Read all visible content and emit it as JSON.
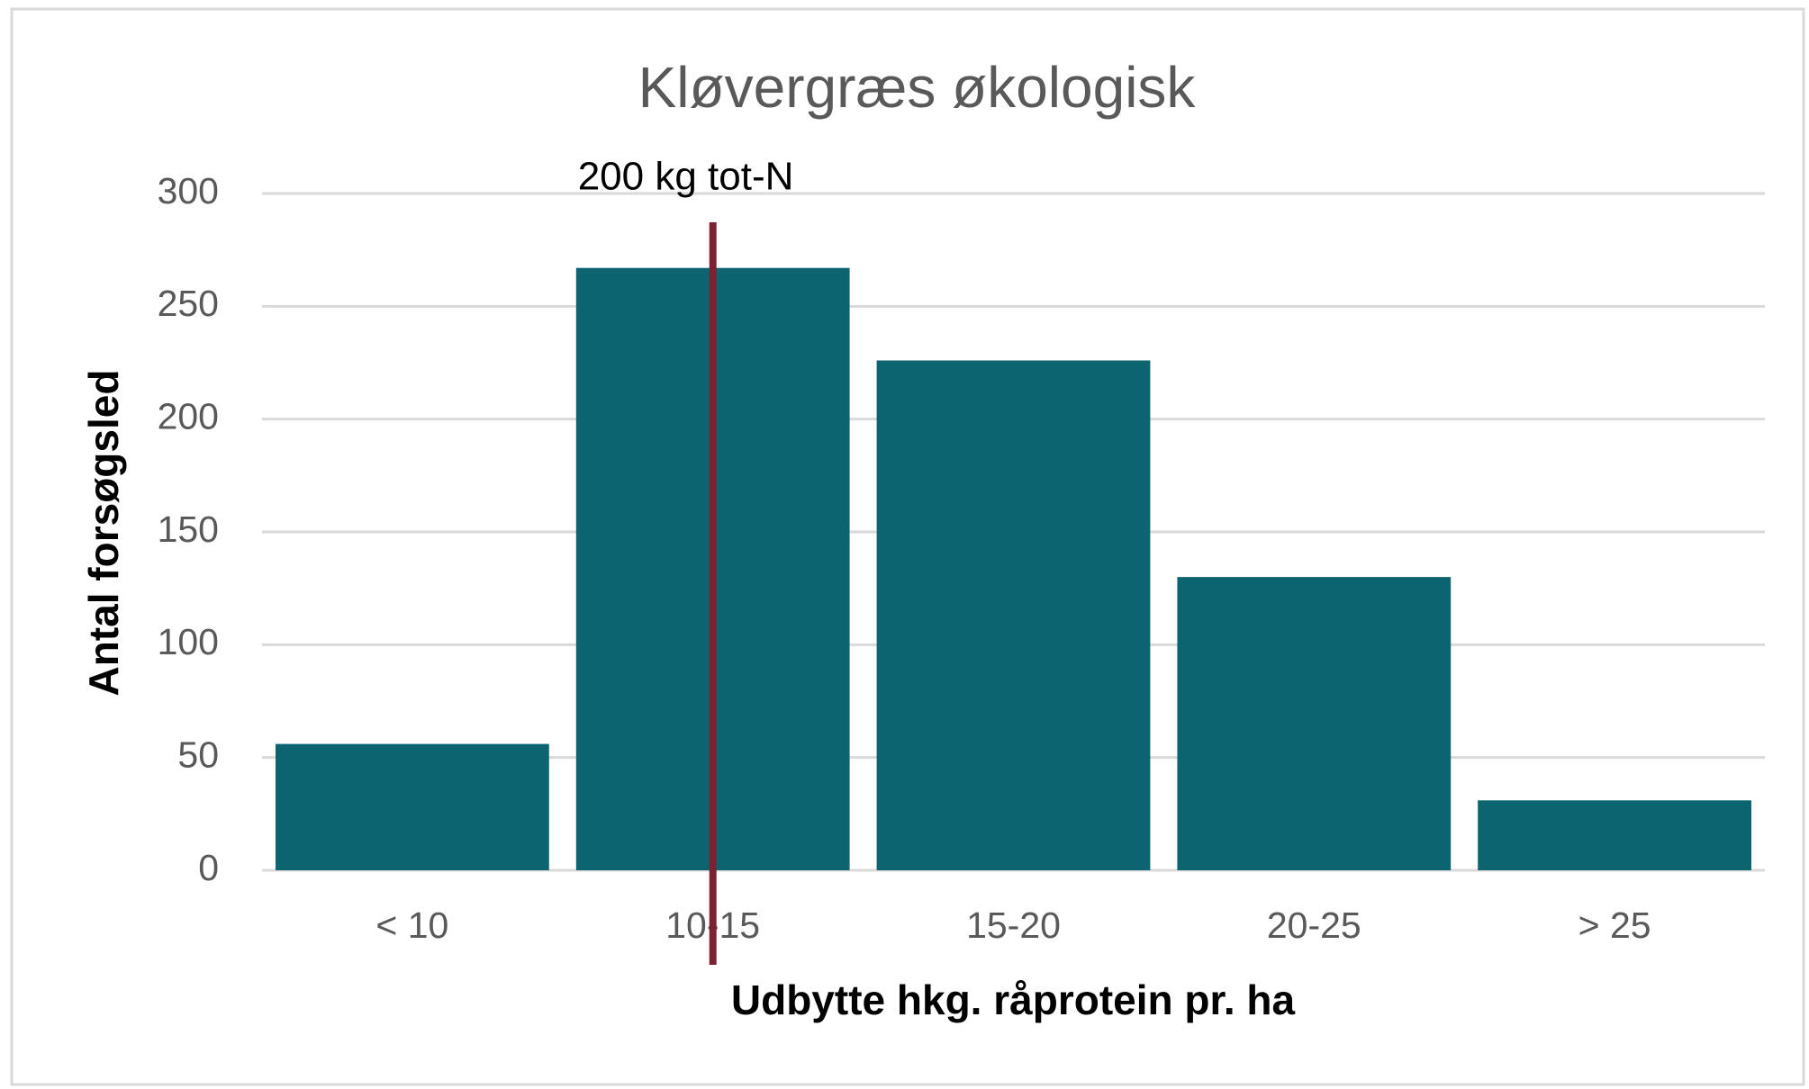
{
  "chart_data": {
    "type": "bar",
    "title": "Kløvergræs økologisk",
    "x_label": "Udbytte hkg. råprotein pr. ha",
    "y_label": "Antal forsøgsled",
    "categories": [
      "< 10",
      "10-15",
      "15-20",
      "20-25",
      "> 25"
    ],
    "values": [
      56,
      267,
      226,
      130,
      31
    ],
    "color": "#0b6470",
    "ylim": [
      0,
      300
    ],
    "yticks": [
      0,
      50,
      100,
      150,
      200,
      250,
      300
    ],
    "grid": true,
    "annotations": [
      {
        "text": "200 kg tot-N",
        "x": "10-15",
        "color": "#7a2232"
      }
    ]
  }
}
